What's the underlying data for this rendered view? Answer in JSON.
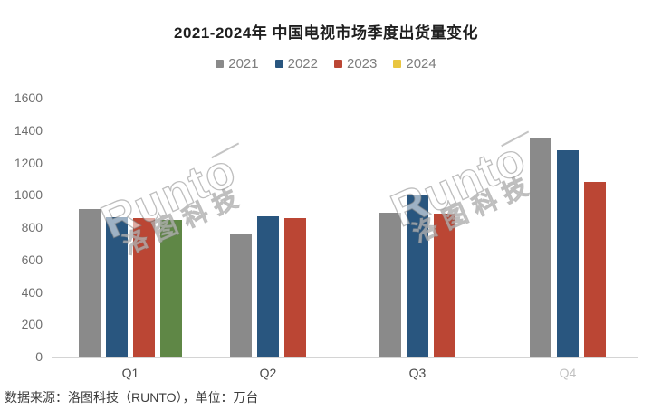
{
  "chart_data": {
    "type": "bar",
    "title": "2021-2024年 中国电视市场季度出货量变化",
    "categories": [
      "Q1",
      "Q2",
      "Q3",
      "Q4"
    ],
    "series": [
      {
        "name": "2021",
        "legend_color": "#8a8a8a",
        "bar_color": "#8a8a8a",
        "values": [
          910,
          760,
          890,
          1355
        ]
      },
      {
        "name": "2022",
        "legend_color": "#29567f",
        "bar_color": "#29567f",
        "values": [
          860,
          865,
          995,
          1275
        ]
      },
      {
        "name": "2023",
        "legend_color": "#bb4634",
        "bar_color": "#bb4634",
        "values": [
          855,
          855,
          885,
          1080
        ]
      },
      {
        "name": "2024",
        "legend_color": "#e9c53f",
        "bar_color": "#5f8746",
        "values": [
          845,
          null,
          null,
          null
        ]
      }
    ],
    "ylim": [
      0,
      1600
    ],
    "ytick_step": 200,
    "yticks": [
      0,
      200,
      400,
      600,
      800,
      1000,
      1200,
      1400,
      1600
    ],
    "grid": false,
    "legend_position": "top",
    "unit": "万台",
    "faded_xlabels": [
      "Q4"
    ]
  },
  "source_note": "数据来源：洛图科技（RUNTO），单位：万台",
  "watermark": {
    "latin": "Runto",
    "cn": "洛图科技"
  }
}
